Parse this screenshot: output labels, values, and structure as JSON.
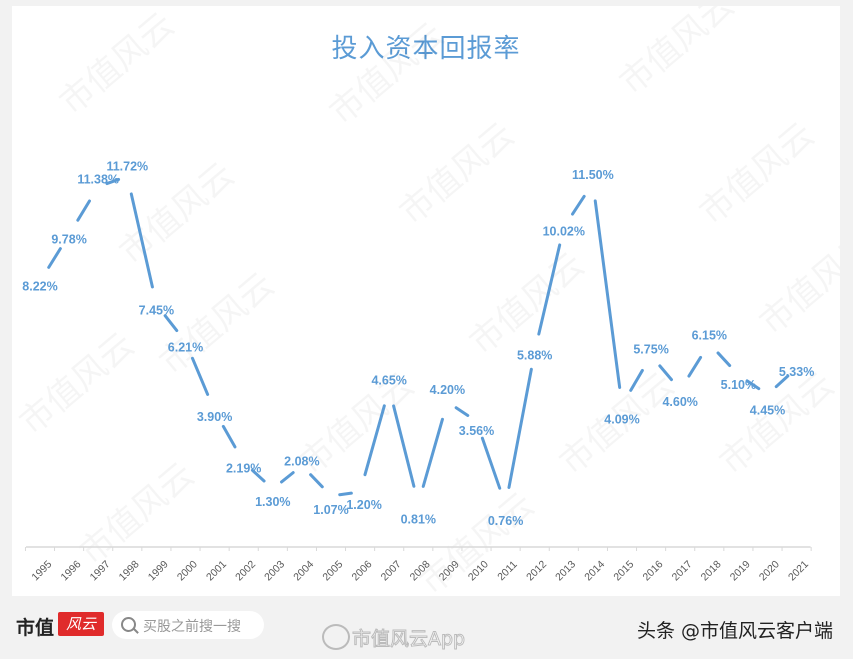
{
  "title": "投入资本回报率",
  "chart_data": {
    "type": "line",
    "title": "投入资本回报率",
    "xlabel": "",
    "ylabel": "",
    "categories": [
      "1995",
      "1996",
      "1997",
      "1998",
      "1999",
      "2000",
      "2001",
      "2002",
      "2003",
      "2004",
      "2005",
      "2006",
      "2007",
      "2008",
      "2009",
      "2010",
      "2011",
      "2012",
      "2013",
      "2014",
      "2015",
      "2016",
      "2017",
      "2018",
      "2019",
      "2020",
      "2021"
    ],
    "series": [
      {
        "name": "投入资本回报率",
        "values": [
          8.22,
          9.78,
          11.38,
          11.72,
          7.45,
          6.21,
          3.9,
          2.19,
          1.3,
          2.08,
          1.07,
          1.2,
          4.65,
          0.81,
          4.2,
          3.56,
          0.76,
          5.88,
          10.02,
          11.5,
          4.09,
          5.75,
          4.6,
          6.15,
          5.1,
          4.45,
          5.33
        ],
        "labels": [
          "8.22%",
          "9.78%",
          "11.38%",
          "11.72%",
          "7.45%",
          "6.21%",
          "3.90%",
          "2.19%",
          "1.30%",
          "2.08%",
          "1.07%",
          "1.20%",
          "4.65%",
          "0.81%",
          "4.20%",
          "3.56%",
          "0.76%",
          "5.88%",
          "10.02%",
          "11.50%",
          "4.09%",
          "5.75%",
          "4.60%",
          "6.15%",
          "5.10%",
          "4.45%",
          "5.33%"
        ],
        "color": "#5b9bd5"
      }
    ],
    "grid": false,
    "legend": "none",
    "ylim": [
      0,
      13
    ],
    "x_tick_rotation": -45
  },
  "colors": {
    "line": "#5b9bd5",
    "title": "#5b9bd5",
    "axis": "#d9d9d9",
    "brand_red": "#e02b2b"
  },
  "watermark": "市值风云",
  "footer": {
    "brand": "市值",
    "brand_logo": "风云",
    "search_placeholder": "买股之前搜一搜",
    "weibo": "市值风云App",
    "toutiao": "头条 @市值风云客户端"
  }
}
